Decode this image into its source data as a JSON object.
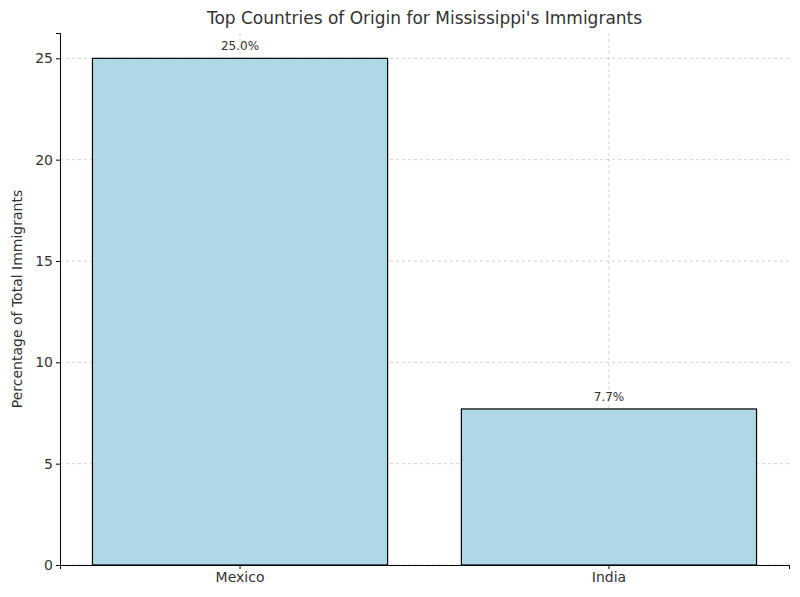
{
  "chart_data": {
    "type": "bar",
    "title": "Top Countries of Origin for Mississippi's Immigrants",
    "y_label": "Percentage of Total Immigrants",
    "categories": [
      "Mexico",
      "India"
    ],
    "values": [
      25.0,
      7.7
    ],
    "value_labels": [
      "25.0%",
      "7.7%"
    ],
    "data_labels": true,
    "color": "#add8e6",
    "ylim": [
      0,
      26.25
    ],
    "yticks": [
      0,
      5,
      10,
      15,
      20,
      25
    ],
    "grid": true
  }
}
